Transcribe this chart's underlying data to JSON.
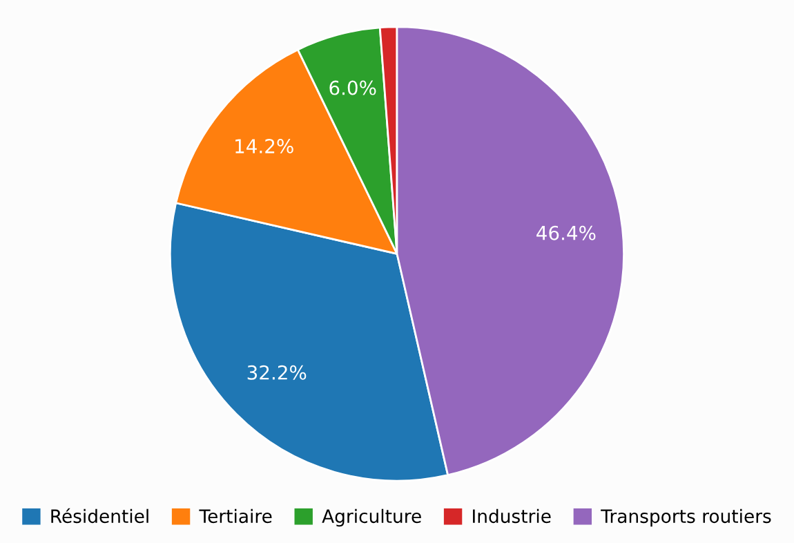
{
  "chart_data": {
    "type": "pie",
    "categories": [
      "Résidentiel",
      "Tertiaire",
      "Agriculture",
      "Industrie",
      "Transports routiers"
    ],
    "values": [
      32.2,
      14.2,
      6.0,
      1.2,
      46.4
    ],
    "colors": [
      "#1f77b4",
      "#ff7f0e",
      "#2ca02c",
      "#d62728",
      "#9467bd"
    ],
    "value_labels": [
      "32.2%",
      "14.2%",
      "6.0%",
      null,
      "46.4%"
    ],
    "legend": "bottom"
  }
}
